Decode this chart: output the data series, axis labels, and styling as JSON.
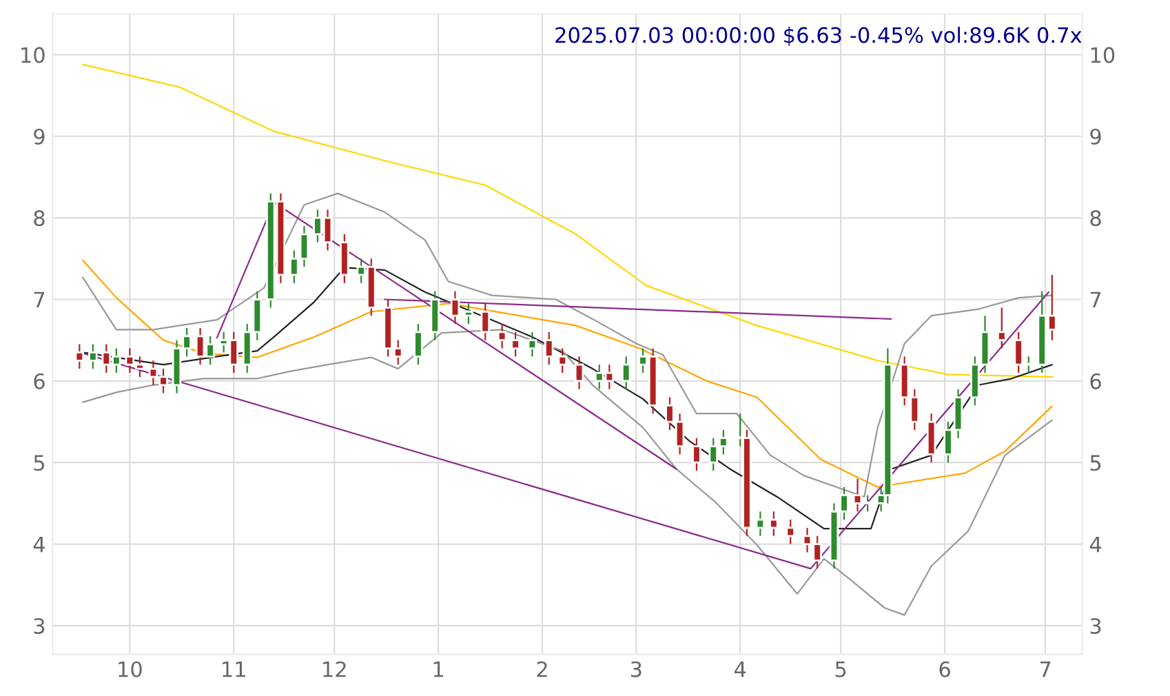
{
  "chart_data": {
    "type": "candlestick",
    "title": "2025.07.03 00:00:00 $6.63 -0.45% vol:89.6K 0.7x",
    "x": [
      "2024-09-16",
      "2024-09-20",
      "2024-09-24",
      "2024-09-27",
      "2024-10-01",
      "2024-10-04",
      "2024-10-08",
      "2024-10-11",
      "2024-10-15",
      "2024-10-18",
      "2024-10-22",
      "2024-10-25",
      "2024-10-29",
      "2024-11-01",
      "2024-11-05",
      "2024-11-08",
      "2024-11-12",
      "2024-11-15",
      "2024-11-19",
      "2024-11-22",
      "2024-11-26",
      "2024-11-29",
      "2024-12-04",
      "2024-12-09",
      "2024-12-12",
      "2024-12-17",
      "2024-12-20",
      "2024-12-26",
      "2024-12-31",
      "2025-01-06",
      "2025-01-10",
      "2025-01-15",
      "2025-01-20",
      "2025-01-24",
      "2025-01-29",
      "2025-02-03",
      "2025-02-07",
      "2025-02-12",
      "2025-02-18",
      "2025-02-21",
      "2025-02-26",
      "2025-03-03",
      "2025-03-06",
      "2025-03-11",
      "2025-03-14",
      "2025-03-19",
      "2025-03-24",
      "2025-03-27",
      "2025-04-01",
      "2025-04-03",
      "2025-04-07",
      "2025-04-11",
      "2025-04-16",
      "2025-04-21",
      "2025-04-24",
      "2025-04-29",
      "2025-05-02",
      "2025-05-06",
      "2025-05-09",
      "2025-05-13",
      "2025-05-15",
      "2025-05-20",
      "2025-05-23",
      "2025-05-28",
      "2025-06-02",
      "2025-06-05",
      "2025-06-10",
      "2025-06-13",
      "2025-06-18",
      "2025-06-23",
      "2025-06-26",
      "2025-06-30",
      "2025-07-03"
    ],
    "ohlc": [
      [
        6.35,
        6.45,
        6.15,
        6.25
      ],
      [
        6.25,
        6.45,
        6.15,
        6.35
      ],
      [
        6.35,
        6.45,
        6.1,
        6.2
      ],
      [
        6.2,
        6.4,
        6.1,
        6.3
      ],
      [
        6.3,
        6.4,
        6.1,
        6.2
      ],
      [
        6.2,
        6.3,
        6.05,
        6.15
      ],
      [
        6.15,
        6.25,
        5.95,
        6.05
      ],
      [
        6.05,
        6.15,
        5.85,
        5.95
      ],
      [
        5.95,
        6.5,
        5.85,
        6.4
      ],
      [
        6.4,
        6.65,
        6.3,
        6.55
      ],
      [
        6.55,
        6.65,
        6.2,
        6.3
      ],
      [
        6.3,
        6.55,
        6.2,
        6.45
      ],
      [
        6.45,
        6.6,
        6.35,
        6.5
      ],
      [
        6.5,
        6.6,
        6.1,
        6.2
      ],
      [
        6.2,
        6.7,
        6.1,
        6.6
      ],
      [
        6.6,
        7.1,
        6.5,
        7.0
      ],
      [
        7.0,
        8.3,
        6.9,
        8.2
      ],
      [
        8.2,
        8.3,
        7.2,
        7.3
      ],
      [
        7.3,
        7.6,
        7.2,
        7.5
      ],
      [
        7.5,
        7.9,
        7.4,
        7.8
      ],
      [
        7.8,
        8.1,
        7.7,
        8.0
      ],
      [
        8.0,
        8.1,
        7.6,
        7.7
      ],
      [
        7.7,
        7.8,
        7.2,
        7.3
      ],
      [
        7.3,
        7.5,
        7.2,
        7.4
      ],
      [
        7.4,
        7.5,
        6.8,
        6.9
      ],
      [
        6.9,
        7.0,
        6.3,
        6.4
      ],
      [
        6.4,
        6.5,
        6.2,
        6.3
      ],
      [
        6.3,
        6.7,
        6.2,
        6.6
      ],
      [
        6.6,
        7.1,
        6.5,
        7.0
      ],
      [
        7.0,
        7.1,
        6.7,
        6.8
      ],
      [
        6.8,
        6.95,
        6.7,
        6.85
      ],
      [
        6.85,
        6.95,
        6.5,
        6.6
      ],
      [
        6.6,
        6.7,
        6.4,
        6.5
      ],
      [
        6.5,
        6.6,
        6.3,
        6.4
      ],
      [
        6.4,
        6.6,
        6.3,
        6.5
      ],
      [
        6.5,
        6.6,
        6.2,
        6.3
      ],
      [
        6.3,
        6.4,
        6.1,
        6.2
      ],
      [
        6.2,
        6.3,
        5.9,
        6.0
      ],
      [
        6.0,
        6.2,
        5.9,
        6.1
      ],
      [
        6.1,
        6.2,
        5.9,
        6.0
      ],
      [
        6.0,
        6.3,
        5.9,
        6.2
      ],
      [
        6.2,
        6.4,
        6.1,
        6.3
      ],
      [
        6.3,
        6.4,
        5.6,
        5.7
      ],
      [
        5.7,
        5.8,
        5.4,
        5.5
      ],
      [
        5.5,
        5.6,
        5.1,
        5.2
      ],
      [
        5.2,
        5.3,
        4.9,
        5.0
      ],
      [
        5.0,
        5.3,
        4.9,
        5.2
      ],
      [
        5.2,
        5.4,
        5.1,
        5.3
      ],
      [
        5.3,
        5.6,
        5.2,
        5.3
      ],
      [
        5.3,
        5.4,
        4.1,
        4.2
      ],
      [
        4.2,
        4.4,
        4.1,
        4.3
      ],
      [
        4.3,
        4.4,
        4.1,
        4.2
      ],
      [
        4.2,
        4.3,
        4.0,
        4.1
      ],
      [
        4.1,
        4.2,
        3.9,
        4.0
      ],
      [
        4.0,
        4.1,
        3.7,
        3.8
      ],
      [
        3.8,
        4.5,
        3.7,
        4.4
      ],
      [
        4.4,
        4.7,
        4.3,
        4.6
      ],
      [
        4.6,
        4.8,
        4.4,
        4.5
      ],
      [
        4.5,
        4.6,
        4.4,
        4.5
      ],
      [
        4.5,
        4.7,
        4.4,
        4.6
      ],
      [
        4.6,
        6.4,
        4.5,
        6.2
      ],
      [
        6.2,
        6.3,
        5.7,
        5.8
      ],
      [
        5.8,
        5.9,
        5.4,
        5.5
      ],
      [
        5.5,
        5.6,
        5.0,
        5.1
      ],
      [
        5.1,
        5.5,
        5.0,
        5.4
      ],
      [
        5.4,
        5.9,
        5.3,
        5.8
      ],
      [
        5.8,
        6.3,
        5.7,
        6.2
      ],
      [
        6.2,
        6.8,
        6.1,
        6.6
      ],
      [
        6.6,
        6.9,
        6.4,
        6.5
      ],
      [
        6.5,
        6.6,
        6.1,
        6.2
      ],
      [
        6.2,
        6.3,
        6.1,
        6.2
      ],
      [
        6.2,
        7.1,
        6.1,
        6.8
      ],
      [
        6.8,
        7.3,
        6.5,
        6.63
      ]
    ],
    "colors": [
      "#b22222",
      "#2e8b2e",
      "#b22222",
      "#2e8b2e",
      "#b22222",
      "#b22222",
      "#b22222",
      "#b22222",
      "#2e8b2e",
      "#2e8b2e",
      "#b22222",
      "#2e8b2e",
      "#2e8b2e",
      "#b22222",
      "#2e8b2e",
      "#2e8b2e",
      "#2e8b2e",
      "#b22222",
      "#2e8b2e",
      "#2e8b2e",
      "#2e8b2e",
      "#b22222",
      "#b22222",
      "#2e8b2e",
      "#b22222",
      "#b22222",
      "#b22222",
      "#2e8b2e",
      "#2e8b2e",
      "#b22222",
      "#2e8b2e",
      "#b22222",
      "#b22222",
      "#b22222",
      "#2e8b2e",
      "#b22222",
      "#b22222",
      "#b22222",
      "#2e8b2e",
      "#b22222",
      "#2e8b2e",
      "#2e8b2e",
      "#b22222",
      "#b22222",
      "#b22222",
      "#b22222",
      "#2e8b2e",
      "#2e8b2e",
      "#2e8b2e",
      "#b22222",
      "#2e8b2e",
      "#b22222",
      "#b22222",
      "#b22222",
      "#b22222",
      "#2e8b2e",
      "#2e8b2e",
      "#b22222",
      "#2e8b2e",
      "#2e8b2e",
      "#2e8b2e",
      "#b22222",
      "#b22222",
      "#b22222",
      "#2e8b2e",
      "#2e8b2e",
      "#2e8b2e",
      "#2e8b2e",
      "#b22222",
      "#b22222",
      "#2e8b2e",
      "#2e8b2e",
      "#b22222"
    ],
    "series": [
      {
        "type": "line",
        "color": "#ffd700",
        "x": [
          "2024-09-17",
          "2024-10-16",
          "2024-11-13",
          "2024-12-16",
          "2025-01-15",
          "2025-02-11",
          "2025-03-04",
          "2025-04-06",
          "2025-05-12",
          "2025-06-02",
          "2025-07-03"
        ],
        "values": [
          9.88,
          9.6,
          9.06,
          8.7,
          8.4,
          7.8,
          7.17,
          6.68,
          6.25,
          6.08,
          6.05
        ]
      },
      {
        "type": "line",
        "color": "#ffa500",
        "x": [
          "2024-09-17",
          "2024-09-27",
          "2024-10-11",
          "2024-10-23",
          "2024-11-08",
          "2024-11-25",
          "2024-12-12",
          "2025-01-04",
          "2025-02-11",
          "2025-03-02",
          "2025-03-22",
          "2025-04-06",
          "2025-04-25",
          "2025-05-12",
          "2025-06-07",
          "2025-06-19",
          "2025-07-03"
        ],
        "values": [
          7.48,
          7.02,
          6.5,
          6.34,
          6.29,
          6.54,
          6.85,
          6.95,
          6.68,
          6.4,
          6.0,
          5.8,
          5.04,
          4.7,
          4.87,
          5.14,
          5.69
        ]
      },
      {
        "type": "line",
        "color": "#222222",
        "x": [
          "2024-09-17",
          "2024-10-11",
          "2024-10-27",
          "2024-11-08",
          "2024-11-13",
          "2024-11-25",
          "2024-12-04",
          "2024-12-16",
          "2024-12-28",
          "2025-01-11",
          "2025-01-29",
          "2025-02-16",
          "2025-03-03",
          "2025-03-17",
          "2025-03-29",
          "2025-04-12",
          "2025-04-26",
          "2025-05-10",
          "2025-05-16",
          "2025-05-28",
          "2025-06-11",
          "2025-06-21",
          "2025-07-03"
        ],
        "values": [
          6.35,
          6.2,
          6.3,
          6.37,
          6.54,
          6.97,
          7.39,
          7.36,
          7.09,
          6.85,
          6.54,
          6.15,
          5.78,
          5.26,
          4.92,
          4.58,
          4.19,
          4.19,
          4.92,
          5.09,
          5.95,
          6.03,
          6.2
        ]
      },
      {
        "type": "line",
        "color": "#999999",
        "x": [
          "2024-09-17",
          "2024-09-27",
          "2024-10-08",
          "2024-10-27",
          "2024-11-10",
          "2024-11-22",
          "2024-12-02",
          "2024-12-16",
          "2024-12-28",
          "2025-01-04",
          "2025-01-17",
          "2025-02-05",
          "2025-02-16",
          "2025-03-01",
          "2025-03-09",
          "2025-03-19",
          "2025-03-31",
          "2025-04-10",
          "2025-04-20",
          "2025-05-08",
          "2025-05-12",
          "2025-05-20",
          "2025-05-28",
          "2025-06-11",
          "2025-06-23",
          "2025-07-03"
        ],
        "values": [
          7.27,
          6.63,
          6.63,
          6.75,
          7.14,
          8.16,
          8.3,
          8.07,
          7.73,
          7.22,
          7.05,
          7.0,
          6.76,
          6.46,
          6.32,
          5.6,
          5.6,
          5.09,
          4.84,
          4.58,
          5.43,
          6.46,
          6.8,
          6.88,
          7.02,
          7.05
        ]
      },
      {
        "type": "line",
        "color": "#999999",
        "x": [
          "2024-09-17",
          "2024-09-27",
          "2024-10-08",
          "2024-10-23",
          "2024-11-08",
          "2024-11-18",
          "2024-11-29",
          "2024-12-12",
          "2024-12-20",
          "2025-01-02",
          "2025-01-20",
          "2025-02-07",
          "2025-02-16",
          "2025-03-03",
          "2025-03-13",
          "2025-03-25",
          "2025-04-06",
          "2025-04-18",
          "2025-04-26",
          "2025-05-04",
          "2025-05-14",
          "2025-05-20",
          "2025-05-28",
          "2025-06-08",
          "2025-06-19",
          "2025-07-03"
        ],
        "values": [
          5.74,
          5.86,
          5.95,
          6.03,
          6.03,
          6.12,
          6.2,
          6.29,
          6.15,
          6.59,
          6.63,
          6.37,
          5.95,
          5.43,
          4.92,
          4.5,
          3.99,
          3.39,
          3.82,
          3.56,
          3.22,
          3.13,
          3.73,
          4.16,
          5.09,
          5.52
        ]
      },
      {
        "type": "line",
        "color": "#8b2a8b",
        "x": [
          "2024-09-17",
          "2025-04-22"
        ],
        "values": [
          6.34,
          3.7
        ]
      },
      {
        "type": "line",
        "color": "#8b2a8b",
        "x": [
          "2024-10-27",
          "2024-11-13"
        ],
        "values": [
          6.53,
          8.19
        ]
      },
      {
        "type": "line",
        "color": "#8b2a8b",
        "x": [
          "2024-11-13",
          "2025-03-13"
        ],
        "values": [
          8.19,
          4.92
        ]
      },
      {
        "type": "line",
        "color": "#8b2a8b",
        "x": [
          "2024-12-16",
          "2025-05-16"
        ],
        "values": [
          7.0,
          6.76
        ]
      },
      {
        "type": "line",
        "color": "#8b2a8b",
        "x": [
          "2025-04-22",
          "2025-07-02"
        ],
        "values": [
          3.7,
          7.09
        ]
      }
    ],
    "xlim": [
      "2024-09-08",
      "2025-07-12"
    ],
    "xticks": [
      {
        "value": "2024-10-01",
        "label": "10"
      },
      {
        "value": "2024-11-01",
        "label": "11"
      },
      {
        "value": "2024-12-01",
        "label": "12"
      },
      {
        "value": "2025-01-01",
        "label": "1"
      },
      {
        "value": "2025-02-01",
        "label": "2"
      },
      {
        "value": "2025-03-01",
        "label": "3"
      },
      {
        "value": "2025-04-01",
        "label": "4"
      },
      {
        "value": "2025-05-01",
        "label": "5"
      },
      {
        "value": "2025-06-01",
        "label": "6"
      },
      {
        "value": "2025-07-01",
        "label": "7"
      }
    ],
    "ylim": [
      2.65,
      10.5
    ],
    "yticks": [
      3,
      4,
      5,
      6,
      7,
      8,
      9,
      10
    ],
    "y2lim": [
      2.65,
      10.5
    ],
    "y2ticks": [
      3,
      4,
      5,
      6,
      7,
      8,
      9,
      10
    ],
    "grid": true,
    "marker": "none",
    "line_style": "solid"
  }
}
